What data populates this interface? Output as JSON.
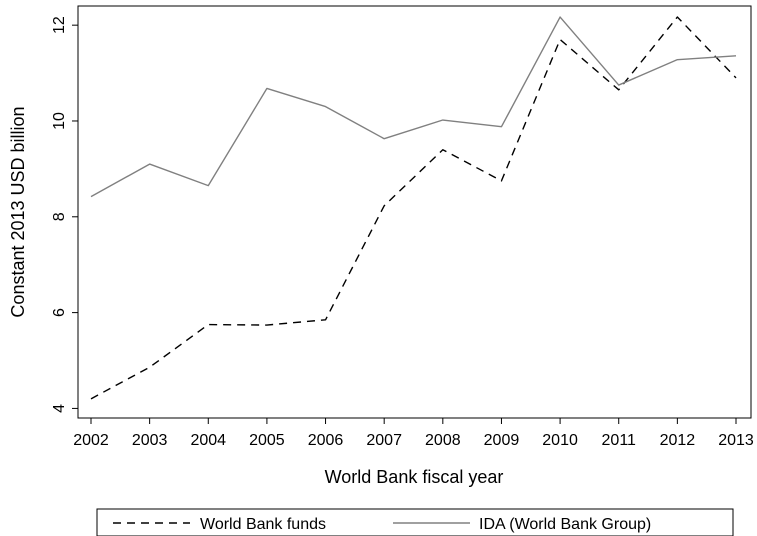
{
  "chart_data": {
    "type": "line",
    "x": [
      2002,
      2003,
      2004,
      2005,
      2006,
      2007,
      2008,
      2009,
      2010,
      2011,
      2012,
      2013
    ],
    "series": [
      {
        "name": "World Bank funds",
        "values": [
          4.2,
          4.86,
          5.75,
          5.74,
          5.85,
          8.23,
          9.4,
          8.75,
          11.7,
          10.65,
          12.17,
          10.9
        ],
        "color": "#000000",
        "style": "dashed"
      },
      {
        "name": "IDA (World Bank Group)",
        "values": [
          8.42,
          9.1,
          8.65,
          10.68,
          10.3,
          9.63,
          10.02,
          9.88,
          12.17,
          10.75,
          11.28,
          11.36
        ],
        "color": "#808080",
        "style": "solid"
      }
    ],
    "xlabel": "World Bank fiscal year",
    "ylabel": "Constant 2013 USD billion",
    "xlim": [
      2002,
      2013
    ],
    "ylim": [
      3.8,
      12.4
    ],
    "yticks": [
      4,
      6,
      8,
      10,
      12
    ],
    "xticks": [
      2002,
      2003,
      2004,
      2005,
      2006,
      2007,
      2008,
      2009,
      2010,
      2011,
      2012,
      2013
    ],
    "grid": false,
    "legend_position": "bottom"
  }
}
